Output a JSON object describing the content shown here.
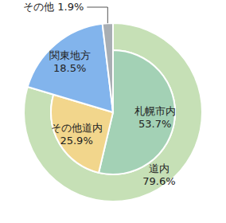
{
  "chart_data": {
    "type": "pie",
    "categories": [
      "札幌市内",
      "その他道内",
      "関東地方",
      "その他"
    ],
    "values": [
      53.7,
      25.9,
      18.5,
      1.9
    ],
    "value_labels": [
      "53.7%",
      "25.9%",
      "18.5%",
      "1.9%"
    ],
    "colors": [
      "#a3d1b5",
      "#f2d68c",
      "#82b4ec",
      "#a8aeb3"
    ],
    "outer": {
      "categories": [
        "道内"
      ],
      "values": [
        79.6
      ],
      "value_labels": [
        "79.6%"
      ],
      "colors": [
        "#c6e0b6"
      ]
    },
    "data_labels": true
  }
}
